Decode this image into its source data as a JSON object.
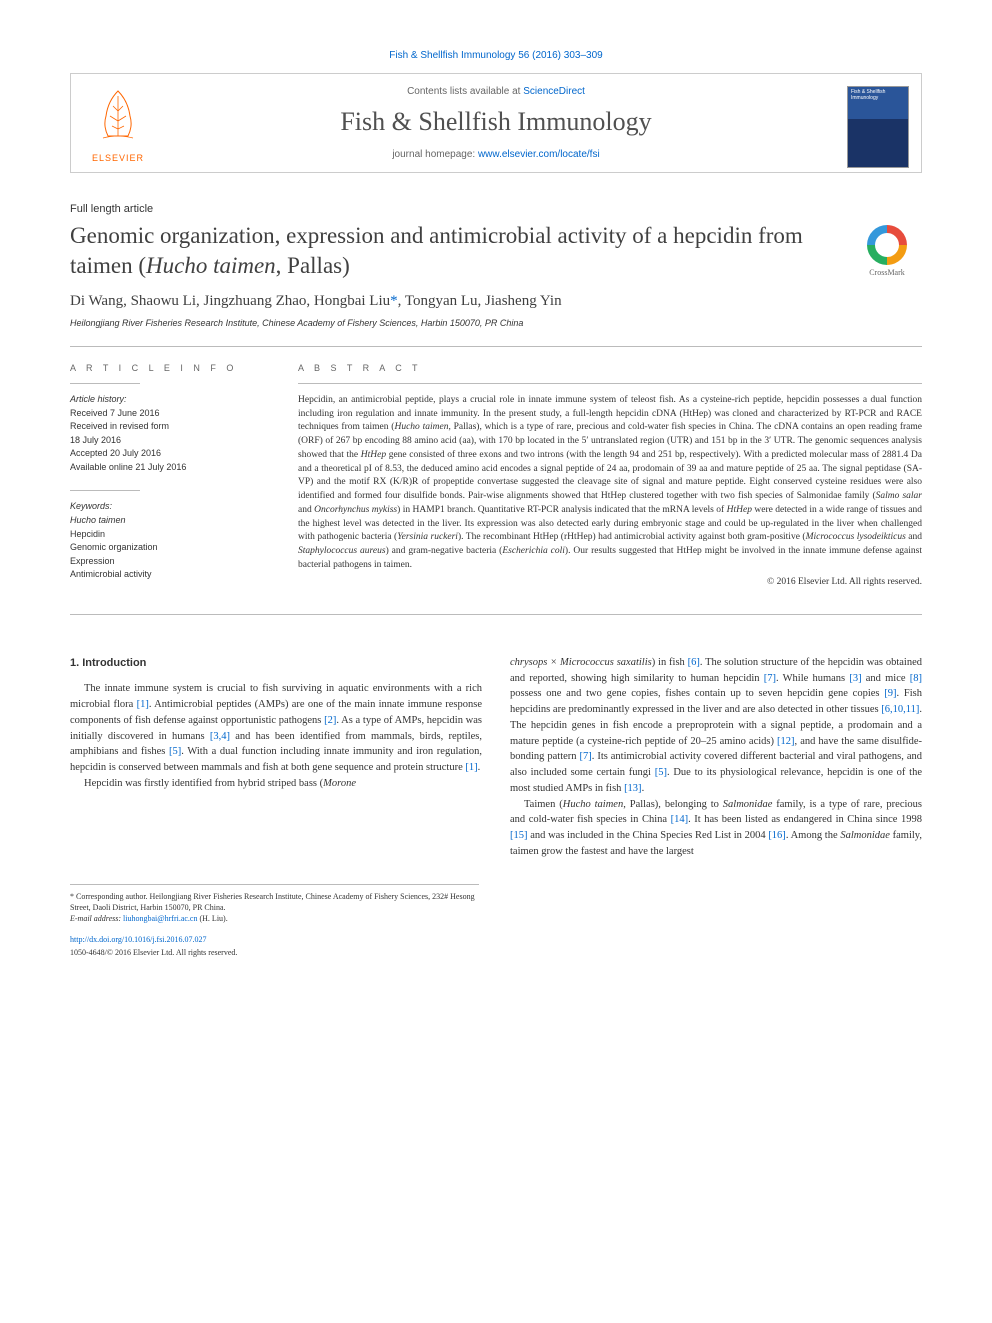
{
  "journal_ref": "Fish & Shellfish Immunology 56 (2016) 303–309",
  "header": {
    "contents_prefix": "Contents lists available at ",
    "contents_link": "ScienceDirect",
    "journal_title": "Fish & Shellfish Immunology",
    "homepage_prefix": "journal homepage: ",
    "homepage_link": "www.elsevier.com/locate/fsi",
    "elsevier_label": "ELSEVIER",
    "cover_text": "Fish & Shellfish Immunology"
  },
  "article_type": "Full length article",
  "title_html": "Genomic organization, expression and antimicrobial activity of a hepcidin from taimen (<em>Hucho taimen</em>, Pallas)",
  "crossmark_label": "CrossMark",
  "authors_html": "Di Wang, Shaowu Li, Jingzhuang Zhao, Hongbai Liu<span class='corr'>*</span>, Tongyan Lu, Jiasheng Yin",
  "affiliation": "Heilongjiang River Fisheries Research Institute, Chinese Academy of Fishery Sciences, Harbin 150070, PR China",
  "info_heading": "A R T I C L E   I N F O",
  "abstract_heading": "A B S T R A C T",
  "history_label": "Article history:",
  "history": [
    "Received 7 June 2016",
    "Received in revised form",
    "18 July 2016",
    "Accepted 20 July 2016",
    "Available online 21 July 2016"
  ],
  "keywords_label": "Keywords:",
  "keywords": [
    "Hucho taimen",
    "Hepcidin",
    "Genomic organization",
    "Expression",
    "Antimicrobial activity"
  ],
  "abstract_html": "Hepcidin, an antimicrobial peptide, plays a crucial role in innate immune system of teleost fish. As a cysteine-rich peptide, hepcidin possesses a dual function including iron regulation and innate immunity. In the present study, a full-length hepcidin cDNA (HtHep) was cloned and characterized by RT-PCR and RACE techniques from taimen (<em>Hucho taimen</em>, Pallas), which is a type of rare, precious and cold-water fish species in China. The cDNA contains an open reading frame (ORF) of 267 bp encoding 88 amino acid (aa), with 170 bp located in the 5′ untranslated region (UTR) and 151 bp in the 3′ UTR. The genomic sequences analysis showed that the <em>HtHep</em> gene consisted of three exons and two introns (with the length 94 and 251 bp, respectively). With a predicted molecular mass of 2881.4 Da and a theoretical pI of 8.53, the deduced amino acid encodes a signal peptide of 24 aa, prodomain of 39 aa and mature peptide of 25 aa. The signal peptidase (SA-VP) and the motif RX (K/R)R of propeptide convertase suggested the cleavage site of signal and mature peptide. Eight conserved cysteine residues were also identified and formed four disulfide bonds. Pair-wise alignments showed that HtHep clustered together with two fish species of Salmonidae family (<em>Salmo salar</em> and <em>Oncorhynchus mykiss</em>) in HAMP1 branch. Quantitative RT-PCR analysis indicated that the mRNA levels of <em>HtHep</em> were detected in a wide range of tissues and the highest level was detected in the liver. Its expression was also detected early during embryonic stage and could be up-regulated in the liver when challenged with pathogenic bacteria (<em>Yersinia ruckeri</em>). The recombinant HtHep (rHtHep) had antimicrobial activity against both gram-positive (<em>Micrococcus lysodeikticus</em> and <em>Staphylococcus aureus</em>) and gram-negative bacteria (<em>Escherichia coli</em>). Our results suggested that HtHep might be involved in the innate immune defense against bacterial pathogens in taimen.",
  "copyright": "© 2016 Elsevier Ltd. All rights reserved.",
  "intro_heading": "1. Introduction",
  "intro_p1_html": "The innate immune system is crucial to fish surviving in aquatic environments with a rich microbial flora <span class='ref'>[1]</span>. Antimicrobial peptides (AMPs) are one of the main innate immune response components of fish defense against opportunistic pathogens <span class='ref'>[2]</span>. As a type of AMPs, hepcidin was initially discovered in humans <span class='ref'>[3,4]</span> and has been identified from mammals, birds, reptiles, amphibians and fishes <span class='ref'>[5]</span>. With a dual function including innate immunity and iron regulation, hepcidin is conserved between mammals and fish at both gene sequence and protein structure <span class='ref'>[1]</span>.",
  "intro_p2_html": "Hepcidin was firstly identified from hybrid striped bass (<em>Morone</em>",
  "col2_p1_html": "<em>chrysops × Micrococcus saxatilis</em>) in fish <span class='ref'>[6]</span>. The solution structure of the hepcidin was obtained and reported, showing high similarity to human hepcidin <span class='ref'>[7]</span>. While humans <span class='ref'>[3]</span> and mice <span class='ref'>[8]</span> possess one and two gene copies, fishes contain up to seven hepcidin gene copies <span class='ref'>[9]</span>. Fish hepcidins are predominantly expressed in the liver and are also detected in other tissues <span class='ref'>[6,10,11]</span>. The hepcidin genes in fish encode a preproprotein with a signal peptide, a prodomain and a mature peptide (a cysteine-rich peptide of 20–25 amino acids) <span class='ref'>[12]</span>, and have the same disulfide-bonding pattern <span class='ref'>[7]</span>. Its antimicrobial activity covered different bacterial and viral pathogens, and also included some certain fungi <span class='ref'>[5]</span>. Due to its physiological relevance, hepcidin is one of the most studied AMPs in fish <span class='ref'>[13]</span>.",
  "col2_p2_html": "Taimen (<em>Hucho taimen</em>, Pallas), belonging to <em>Salmonidae</em> family, is a type of rare, precious and cold-water fish species in China <span class='ref'>[14]</span>. It has been listed as endangered in China since 1998 <span class='ref'>[15]</span> and was included in the China Species Red List in 2004 <span class='ref'>[16]</span>. Among the <em>Salmonidae</em> family, taimen grow the fastest and have the largest",
  "footnotes": {
    "corr": "* Corresponding author. Heilongjiang River Fisheries Research Institute, Chinese Academy of Fishery Sciences, 232# Hesong Street, Daoli District, Harbin 150070, PR China.",
    "email_label": "E-mail address: ",
    "email": "liuhongbai@hrfri.ac.cn",
    "email_suffix": " (H. Liu).",
    "doi": "http://dx.doi.org/10.1016/j.fsi.2016.07.027",
    "issn": "1050-4648/© 2016 Elsevier Ltd. All rights reserved."
  },
  "colors": {
    "link": "#0066cc",
    "text": "#333333",
    "heading": "#505050",
    "orange": "#ff6600",
    "border": "#bbbbbb"
  }
}
